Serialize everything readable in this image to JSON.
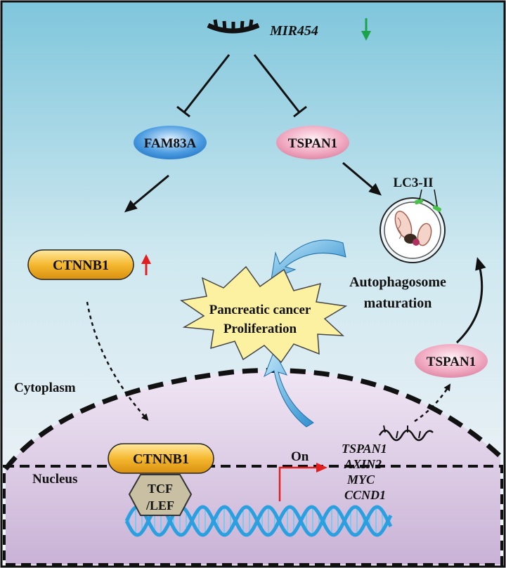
{
  "mirna": {
    "label": "MIR454"
  },
  "targets": {
    "fam83a": "FAM83A",
    "tspan1": "TSPAN1"
  },
  "ctnnb1_cyto": "CTNNB1",
  "lc3": "LC3-II",
  "autophagosome": {
    "line1": "Autophagosome",
    "line2": "maturation"
  },
  "cancer": {
    "line1": "Pancreatic cancer",
    "line2": "Proliferation"
  },
  "compartments": {
    "cytoplasm": "Cytoplasm",
    "nucleus": "Nucleus"
  },
  "nucleus_complex": {
    "ctnnb1": "CTNNB1",
    "tcf_line1": "TCF",
    "tcf_line2": "/LEF"
  },
  "transcription": {
    "on": "On",
    "genes": [
      "TSPAN1",
      "AXIN2",
      "MYC",
      "CCND1"
    ]
  },
  "tspan1_product": "TSPAN1",
  "colors": {
    "down_arrow": "#1aa34a",
    "up_arrow": "#e02020",
    "promoter_arrow": "#e02020",
    "fam83a": "#2f86d6",
    "tspan1": "#e98aa8",
    "ctnnb1": "#f2b52a",
    "burst": "#fbf1a0",
    "dna": "#2aa0e0"
  }
}
